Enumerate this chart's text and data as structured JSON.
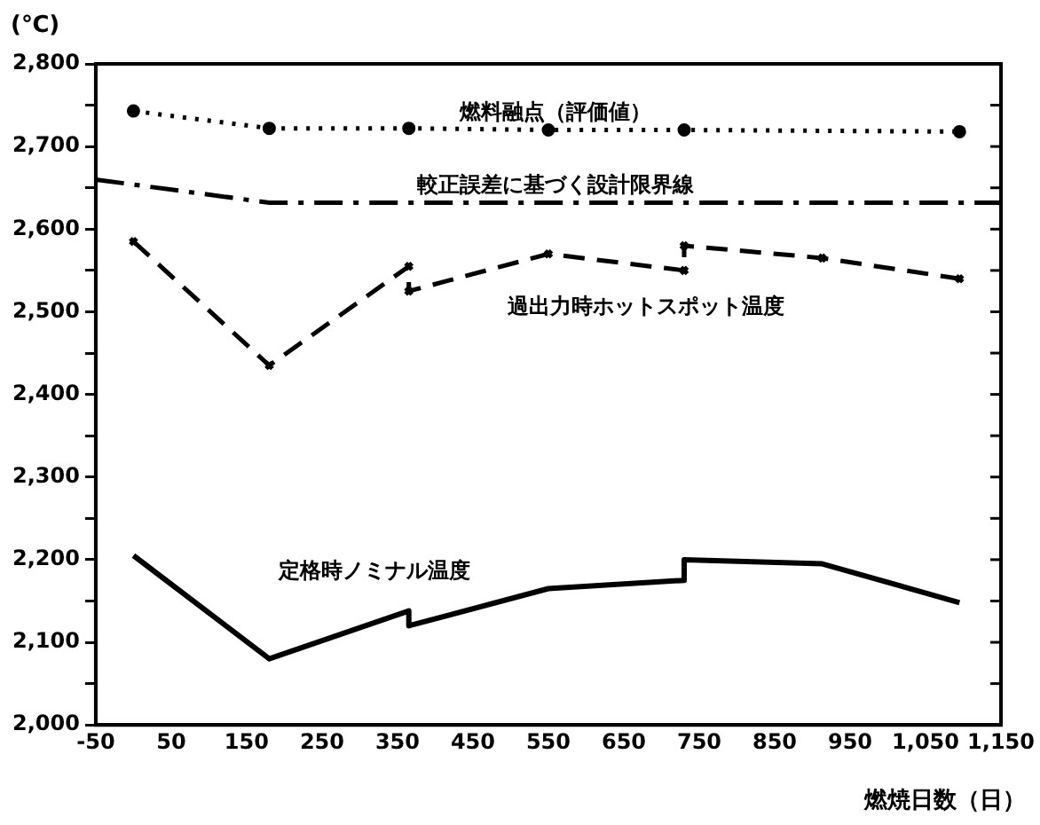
{
  "chart_data": {
    "type": "line",
    "xlabel": "燃焼日数（日）",
    "ylabel": "(℃)",
    "xlim": [
      -50,
      1150
    ],
    "xticks": [
      -50,
      50,
      150,
      250,
      350,
      450,
      550,
      650,
      750,
      850,
      950,
      {
        "value": 1050,
        "label": "1,050"
      },
      {
        "value": 1150,
        "label": "1,150"
      }
    ],
    "ylim": [
      2000,
      2800
    ],
    "yticks": [
      {
        "value": 2000,
        "label": "2,000"
      },
      {
        "value": 2050,
        "label": null
      },
      {
        "value": 2100,
        "label": "2,100"
      },
      {
        "value": 2150,
        "label": null
      },
      {
        "value": 2200,
        "label": "2,200"
      },
      {
        "value": 2250,
        "label": null
      },
      {
        "value": 2300,
        "label": "2,300"
      },
      {
        "value": 2350,
        "label": null
      },
      {
        "value": 2400,
        "label": "2,400"
      },
      {
        "value": 2450,
        "label": null
      },
      {
        "value": 2500,
        "label": "2,500"
      },
      {
        "value": 2550,
        "label": null
      },
      {
        "value": 2600,
        "label": "2,600"
      },
      {
        "value": 2650,
        "label": null
      },
      {
        "value": 2700,
        "label": "2,700"
      },
      {
        "value": 2750,
        "label": null
      },
      {
        "value": 2800,
        "label": "2,800"
      }
    ],
    "grid": false,
    "legend": false,
    "series": [
      {
        "name": "燃料融点（評価値）",
        "color": "#000000",
        "line_style": "dotted",
        "marker": "circle",
        "x": [
          0,
          180,
          365,
          550,
          730,
          1095
        ],
        "values": [
          2743,
          2722,
          2722,
          2720,
          2720,
          2718
        ]
      },
      {
        "name": "較正誤差に基づく設計限界線",
        "color": "#000000",
        "line_style": "dashdot",
        "marker": "none",
        "x": [
          -50,
          180,
          1150
        ],
        "values": [
          2660,
          2632,
          2632
        ]
      },
      {
        "name": "過出力時ホットスポット温度",
        "color": "#000000",
        "line_style": "dashed",
        "marker": "cross",
        "x": [
          0,
          180,
          365,
          365,
          550,
          730,
          730,
          913,
          1095
        ],
        "values": [
          2585,
          2435,
          2555,
          2525,
          2570,
          2550,
          2580,
          2565,
          2540
        ]
      },
      {
        "name": "定格時ノミナル温度",
        "color": "#000000",
        "line_style": "solid",
        "marker": "none",
        "x": [
          0,
          180,
          365,
          365,
          550,
          730,
          730,
          913,
          1095
        ],
        "values": [
          2205,
          2080,
          2138,
          2120,
          2165,
          2175,
          2200,
          2195,
          2148
        ]
      }
    ]
  }
}
